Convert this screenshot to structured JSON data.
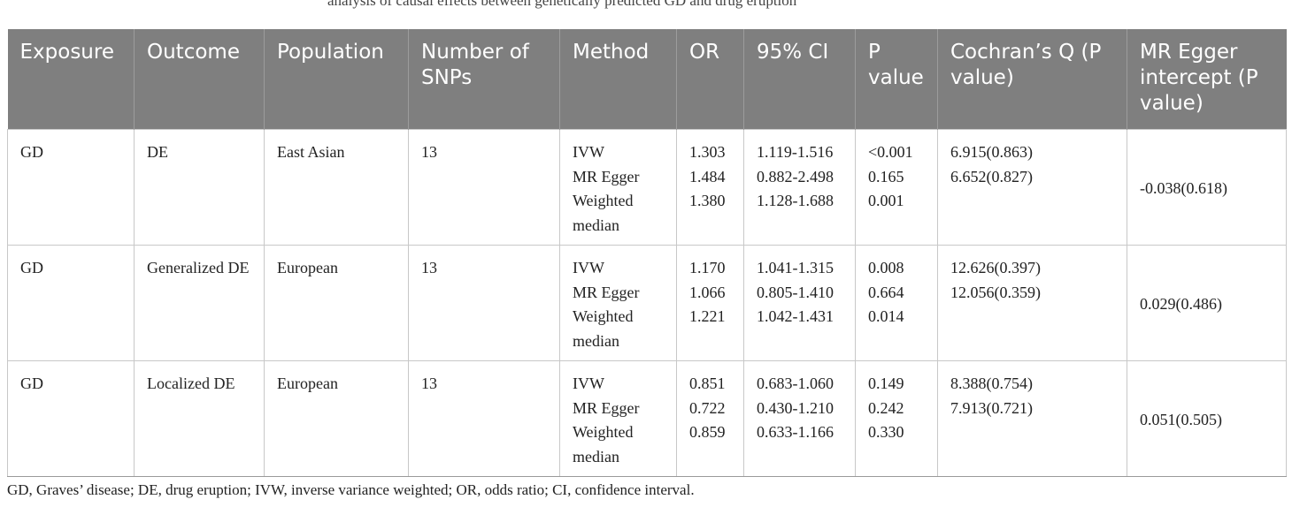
{
  "header_fragment": "analysis of causal effects between genetically predicted GD and drug eruption",
  "table": {
    "headers": [
      "Exposure",
      "Outcome",
      "Population",
      "Number of SNPs",
      "Method",
      "OR",
      "95% CI",
      "P value",
      "Cochran’s Q (P value)",
      "MR Egger intercept (P value)"
    ],
    "rows": [
      {
        "exposure": "GD",
        "outcome": "DE",
        "population": "East Asian",
        "snps": "13",
        "methods": [
          "IVW",
          "MR Egger",
          "Weighted",
          "median"
        ],
        "or": [
          "1.303",
          "1.484",
          "1.380"
        ],
        "ci": [
          "1.119-1.516",
          "0.882-2.498",
          "1.128-1.688"
        ],
        "p": [
          "<0.001",
          "0.165",
          "0.001"
        ],
        "q": [
          "6.915(0.863)",
          "6.652(0.827)"
        ],
        "egger": "-0.038(0.618)"
      },
      {
        "exposure": "GD",
        "outcome": "Generalized DE",
        "population": "European",
        "snps": "13",
        "methods": [
          "IVW",
          "MR Egger",
          "Weighted",
          "median"
        ],
        "or": [
          "1.170",
          "1.066",
          "1.221"
        ],
        "ci": [
          "1.041-1.315",
          "0.805-1.410",
          "1.042-1.431"
        ],
        "p": [
          "0.008",
          "0.664",
          "0.014"
        ],
        "q": [
          "12.626(0.397)",
          "12.056(0.359)"
        ],
        "egger": "0.029(0.486)"
      },
      {
        "exposure": "GD",
        "outcome": "Localized DE",
        "population": "European",
        "snps": "13",
        "methods": [
          "IVW",
          "MR Egger",
          "Weighted",
          "median"
        ],
        "or": [
          "0.851",
          "0.722",
          "0.859"
        ],
        "ci": [
          "0.683-1.060",
          "0.430-1.210",
          "0.633-1.166"
        ],
        "p": [
          "0.149",
          "0.242",
          "0.330"
        ],
        "q": [
          "8.388(0.754)",
          "7.913(0.721)"
        ],
        "egger": "0.051(0.505)"
      }
    ]
  },
  "footnote": "GD, Graves’ disease; DE, drug eruption; IVW, inverse variance weighted; OR, odds ratio; CI, confidence interval.",
  "colors": {
    "header_background": "#7f7f7f",
    "header_text": "#ffffff",
    "grid_line": "#c8c8c8"
  }
}
